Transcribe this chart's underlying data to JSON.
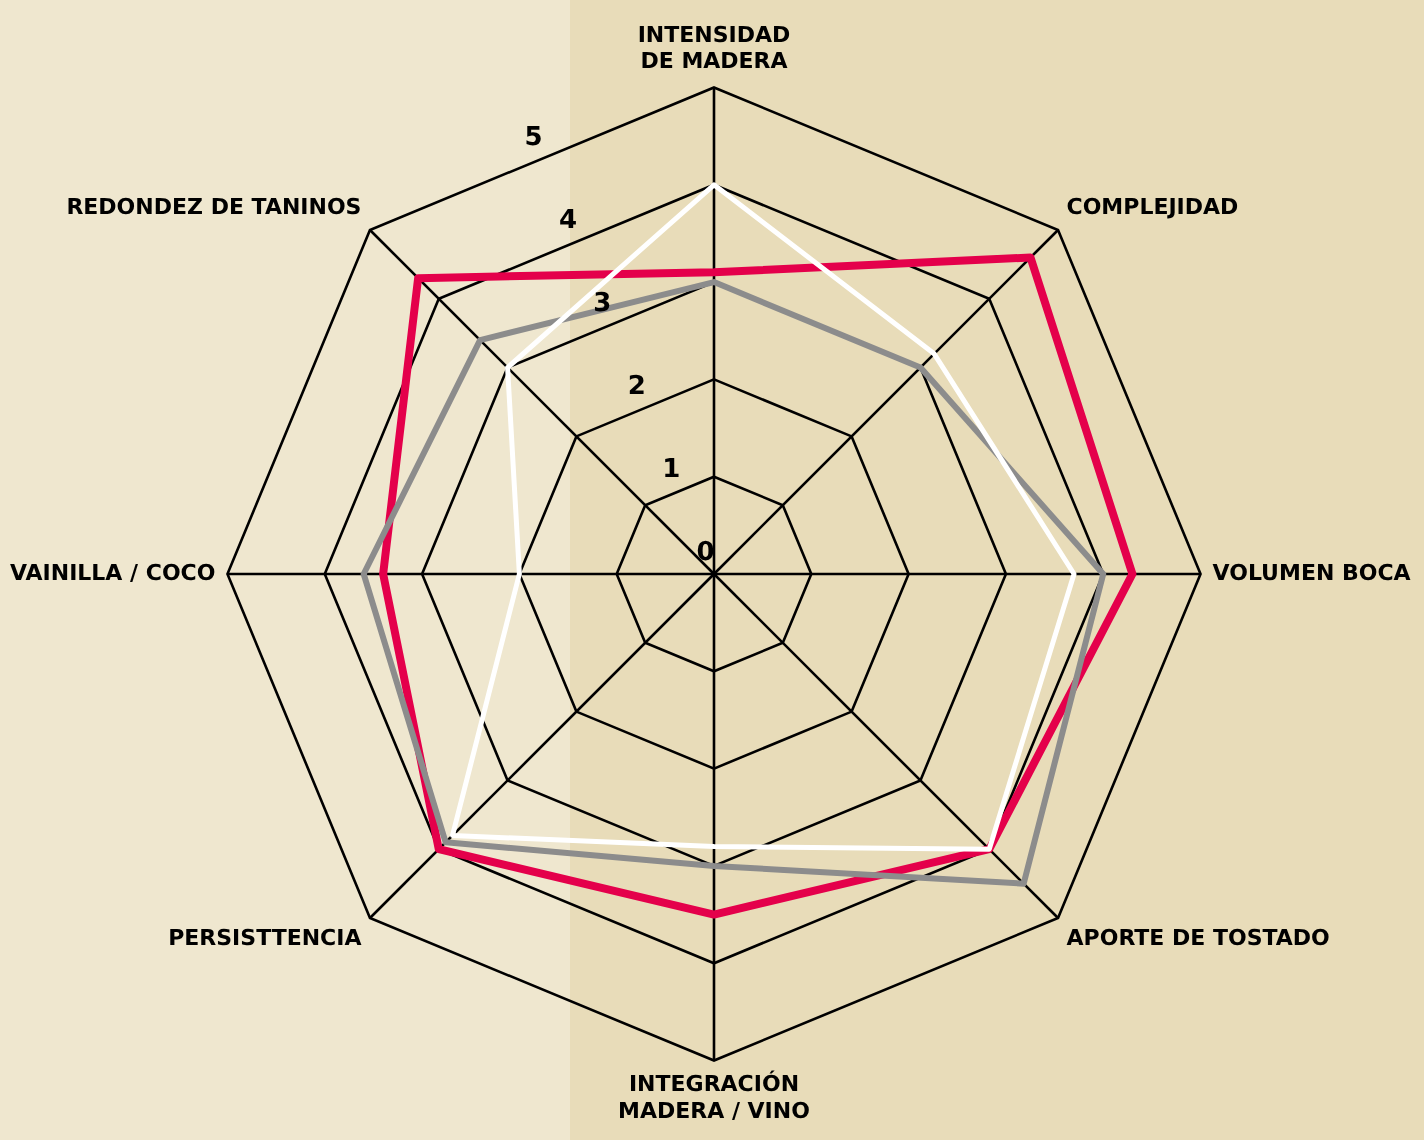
{
  "chart_data": {
    "type": "radar",
    "categories": [
      "INTENSIDAD DE MADERA",
      "COMPLEJIDAD",
      "VOLUMEN BOCA",
      "APORTE DE TOSTADO",
      "INTEGRACIÓN MADERA / VINO",
      "PERSISTTENCIA",
      "VAINILLA / COCO",
      "REDONDEZ DE TANINOS"
    ],
    "series": [
      {
        "color": "#ffffff",
        "values": [
          4.0,
          3.2,
          3.7,
          4.0,
          2.8,
          3.8,
          2.0,
          3.0
        ]
      },
      {
        "color": "#8c8c8c",
        "values": [
          3.0,
          3.0,
          4.0,
          4.5,
          3.0,
          3.9,
          3.6,
          3.4
        ]
      },
      {
        "color": "#e4004b",
        "values": [
          3.1,
          4.6,
          4.3,
          4.0,
          3.5,
          4.0,
          3.4,
          4.3
        ]
      }
    ],
    "ylim": [
      0,
      5
    ],
    "yticks": [
      0,
      1,
      2,
      3,
      4,
      5
    ],
    "grid": true,
    "marker": "none"
  }
}
